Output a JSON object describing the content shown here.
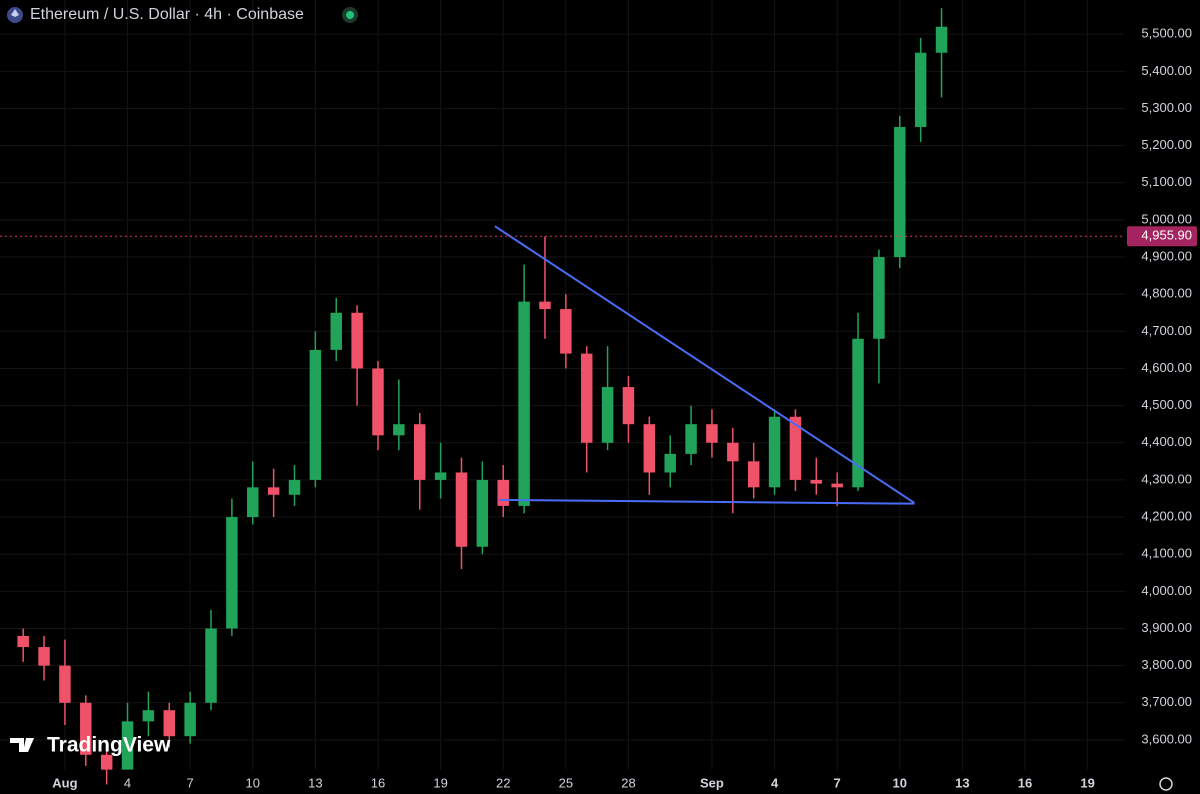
{
  "chart_data": {
    "type": "candlestick",
    "title": "Ethereum / U.S. Dollar · 4h · Coinbase",
    "logo": "TradingView",
    "up_color": "#22a35a",
    "down_color": "#f0526a",
    "grid": true,
    "x": [
      -1,
      0,
      1,
      2,
      3,
      4,
      5,
      6,
      7,
      8,
      9,
      10,
      11,
      12,
      13,
      14,
      15,
      16,
      17,
      18,
      19,
      20,
      21,
      22,
      23,
      24,
      25,
      26,
      27,
      28,
      29,
      30,
      31,
      32,
      33,
      34,
      35,
      36,
      37,
      38,
      39,
      40,
      41,
      42,
      43
    ],
    "open": [
      3880,
      3850,
      3800,
      3700,
      3560,
      3520,
      3650,
      3680,
      3610,
      3700,
      3900,
      4200,
      4280,
      4260,
      4300,
      4650,
      4750,
      4600,
      4420,
      4450,
      4300,
      4320,
      4120,
      4300,
      4230,
      4780,
      4760,
      4640,
      4400,
      4550,
      4450,
      4320,
      4370,
      4450,
      4400,
      4350,
      4280,
      4470,
      4300,
      4290,
      4280,
      4680,
      4900,
      5250,
      5450
    ],
    "high": [
      3900,
      3880,
      3870,
      3720,
      3600,
      3700,
      3730,
      3700,
      3730,
      3950,
      4250,
      4350,
      4330,
      4340,
      4700,
      4790,
      4770,
      4620,
      4570,
      4480,
      4400,
      4360,
      4350,
      4340,
      4880,
      4955,
      4800,
      4660,
      4660,
      4580,
      4470,
      4420,
      4500,
      4490,
      4440,
      4400,
      4490,
      4490,
      4360,
      4320,
      4750,
      4920,
      5280,
      5490,
      5570
    ],
    "low": [
      3810,
      3760,
      3640,
      3530,
      3480,
      3520,
      3610,
      3580,
      3590,
      3680,
      3880,
      4180,
      4200,
      4230,
      4280,
      4620,
      4500,
      4380,
      4380,
      4220,
      4250,
      4060,
      4100,
      4200,
      4210,
      4680,
      4600,
      4320,
      4380,
      4400,
      4260,
      4280,
      4340,
      4360,
      4210,
      4250,
      4260,
      4270,
      4260,
      4230,
      4270,
      4560,
      4870,
      5210,
      5330
    ],
    "close": [
      3850,
      3800,
      3700,
      3560,
      3520,
      3650,
      3680,
      3610,
      3700,
      3900,
      4200,
      4280,
      4260,
      4300,
      4650,
      4750,
      4600,
      4420,
      4450,
      4300,
      4320,
      4120,
      4300,
      4230,
      4780,
      4760,
      4640,
      4400,
      4550,
      4450,
      4320,
      4370,
      4450,
      4400,
      4350,
      4280,
      4470,
      4300,
      4290,
      4280,
      4680,
      4900,
      5250,
      5450,
      5520
    ],
    "xlim": [
      -2.11,
      51.79
    ],
    "xticks": [
      {
        "value": 1,
        "label": "Aug"
      },
      4,
      7,
      10,
      13,
      16,
      19,
      22,
      25,
      28,
      {
        "value": 32,
        "label": "Sep"
      },
      {
        "value": 35,
        "label": "4"
      },
      {
        "value": 38,
        "label": "7"
      },
      {
        "value": 41,
        "label": "10"
      },
      {
        "value": 44,
        "label": "13"
      },
      {
        "value": 47,
        "label": "16"
      },
      {
        "value": 50,
        "label": "19"
      }
    ],
    "ylim": [
      3519,
      5592
    ],
    "yticks": [
      {
        "value": 3600,
        "label": "3,600.00"
      },
      {
        "value": 3700,
        "label": "3,700.00"
      },
      {
        "value": 3800,
        "label": "3,800.00"
      },
      {
        "value": 3900,
        "label": "3,900.00"
      },
      {
        "value": 4000,
        "label": "4,000.00"
      },
      {
        "value": 4100,
        "label": "4,100.00"
      },
      {
        "value": 4200,
        "label": "4,200.00"
      },
      {
        "value": 4300,
        "label": "4,300.00"
      },
      {
        "value": 4400,
        "label": "4,400.00"
      },
      {
        "value": 4500,
        "label": "4,500.00"
      },
      {
        "value": 4600,
        "label": "4,600.00"
      },
      {
        "value": 4700,
        "label": "4,700.00"
      },
      {
        "value": 4800,
        "label": "4,800.00"
      },
      {
        "value": 4900,
        "label": "4,900.00"
      },
      {
        "value": 5000,
        "label": "5,000.00"
      },
      {
        "value": 5100,
        "label": "5,100.00"
      },
      {
        "value": 5200,
        "label": "5,200.00"
      },
      {
        "value": 5300,
        "label": "5,300.00"
      },
      {
        "value": 5400,
        "label": "5,400.00"
      },
      {
        "value": 5500,
        "label": "5,500.00"
      }
    ],
    "price_line": {
      "value": 4955.9,
      "label": "4,955.90",
      "color": "#e0375a"
    },
    "trendlines": [
      {
        "x": [
          21.6,
          41.7
        ],
        "y": [
          4983,
          4238
        ],
        "color": "#4a6cf7"
      },
      {
        "x": [
          21.8,
          41.7
        ],
        "y": [
          4246,
          4236
        ],
        "color": "#4a6cf7"
      }
    ]
  }
}
